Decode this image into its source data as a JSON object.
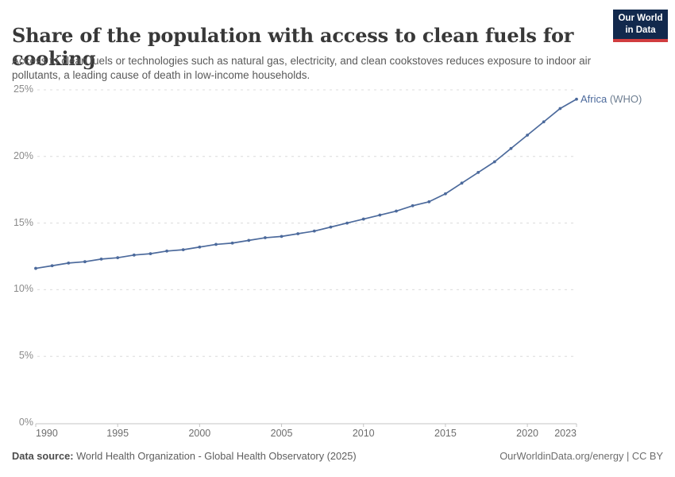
{
  "header": {
    "title": "Share of the population with access to clean fuels for cooking",
    "subtitle": "Access to clean fuels or technologies such as natural gas, electricity, and clean cookstoves reduces exposure to indoor air pollutants, a leading cause of death in low-income households.",
    "logo": {
      "line1": "Our World",
      "line2": "in Data"
    }
  },
  "chart_data": {
    "type": "line",
    "title": "Share of the population with access to clean fuels for cooking",
    "x": [
      1990,
      1991,
      1992,
      1993,
      1994,
      1995,
      1996,
      1997,
      1998,
      1999,
      2000,
      2001,
      2002,
      2003,
      2004,
      2005,
      2006,
      2007,
      2008,
      2009,
      2010,
      2011,
      2012,
      2013,
      2014,
      2015,
      2016,
      2017,
      2018,
      2019,
      2020,
      2021,
      2022,
      2023
    ],
    "series": [
      {
        "name": "Africa (WHO)",
        "color": "#4C6A9C",
        "values": [
          11.6,
          11.8,
          12.0,
          12.1,
          12.3,
          12.4,
          12.6,
          12.7,
          12.9,
          13.0,
          13.2,
          13.4,
          13.5,
          13.7,
          13.9,
          14.0,
          14.2,
          14.4,
          14.7,
          15.0,
          15.3,
          15.6,
          15.9,
          16.3,
          16.6,
          17.2,
          18.0,
          18.8,
          19.6,
          20.6,
          21.6,
          22.6,
          23.6,
          24.3
        ]
      }
    ],
    "xlabel": "",
    "ylabel": "",
    "ylim": [
      0,
      25
    ],
    "xlim": [
      1990,
      2023
    ],
    "y_ticks": [
      {
        "value": 0,
        "label": "0%"
      },
      {
        "value": 5,
        "label": "5%"
      },
      {
        "value": 10,
        "label": "10%"
      },
      {
        "value": 15,
        "label": "15%"
      },
      {
        "value": 20,
        "label": "20%"
      },
      {
        "value": 25,
        "label": "25%"
      }
    ],
    "x_ticks": [
      "1990",
      "1995",
      "2000",
      "2005",
      "2010",
      "2015",
      "2020",
      "2023"
    ],
    "grid": "horizontal-dashed",
    "legend_position": "line-end-label"
  },
  "series_label": {
    "entity": "Africa",
    "suffix": " (WHO)"
  },
  "footer": {
    "datasource_label": "Data source:",
    "datasource_value": " World Health Organization - Global Health Observatory (2025)",
    "url": "OurWorldinData.org/energy",
    "separator": " | ",
    "license": "CC BY"
  },
  "colors": {
    "line": "#4C6A9C",
    "grid": "#dcdcdc",
    "axis": "#c4c4c4",
    "logo_bg": "#12294D",
    "logo_stripe": "#D13D3F"
  }
}
